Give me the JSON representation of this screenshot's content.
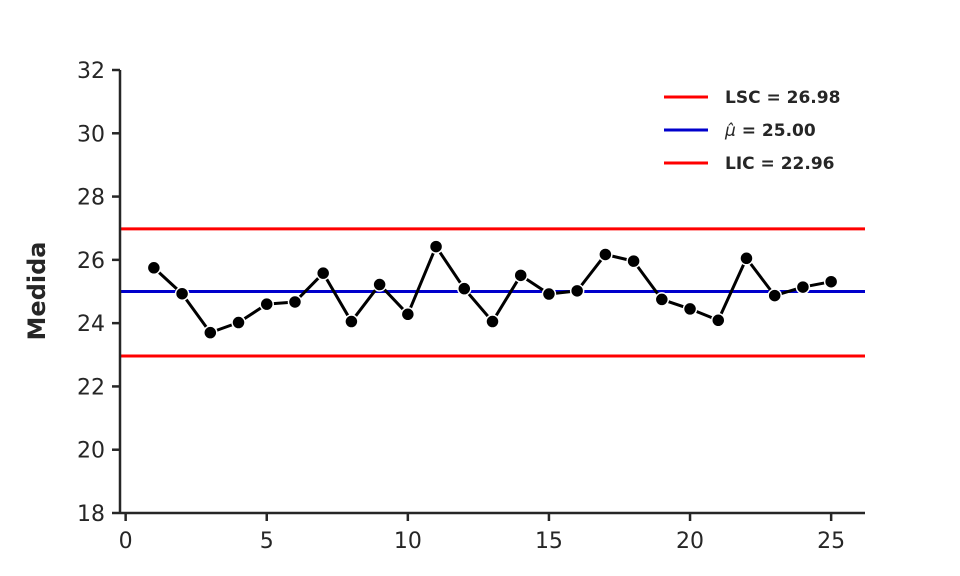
{
  "chart_data": {
    "type": "line",
    "title": "",
    "xlabel": "",
    "ylabel": "Medida",
    "xlim": [
      -0.2,
      26.2
    ],
    "ylim": [
      18,
      32
    ],
    "xticks": [
      0,
      5,
      10,
      15,
      20,
      25
    ],
    "yticks": [
      18,
      20,
      22,
      24,
      26,
      28,
      30,
      32
    ],
    "grid": false,
    "legend_position": "top-right",
    "series": [
      {
        "x": [
          1,
          2,
          3,
          4,
          5,
          6,
          7,
          8,
          9,
          10,
          11,
          12,
          13,
          14,
          15,
          16,
          17,
          18,
          19,
          20,
          21,
          22,
          23,
          24,
          25
        ],
        "values": [
          25.75,
          24.93,
          23.7,
          24.02,
          24.6,
          24.67,
          25.58,
          24.05,
          25.22,
          24.28,
          26.42,
          25.09,
          24.05,
          25.51,
          24.92,
          25.02,
          26.17,
          25.96,
          24.75,
          24.45,
          24.09,
          26.05,
          24.87,
          25.14,
          25.31
        ],
        "color": "#000000",
        "marker": "circle"
      }
    ],
    "reference_lines": [
      {
        "label": "LSC = 26.98",
        "value": 26.98,
        "color": "#ff0000"
      },
      {
        "label_prefix": "μ̂",
        "label": " = 25.00",
        "value": 25.0,
        "color": "#0000cc"
      },
      {
        "label": "LIC = 22.96",
        "value": 22.96,
        "color": "#ff0000"
      }
    ]
  }
}
